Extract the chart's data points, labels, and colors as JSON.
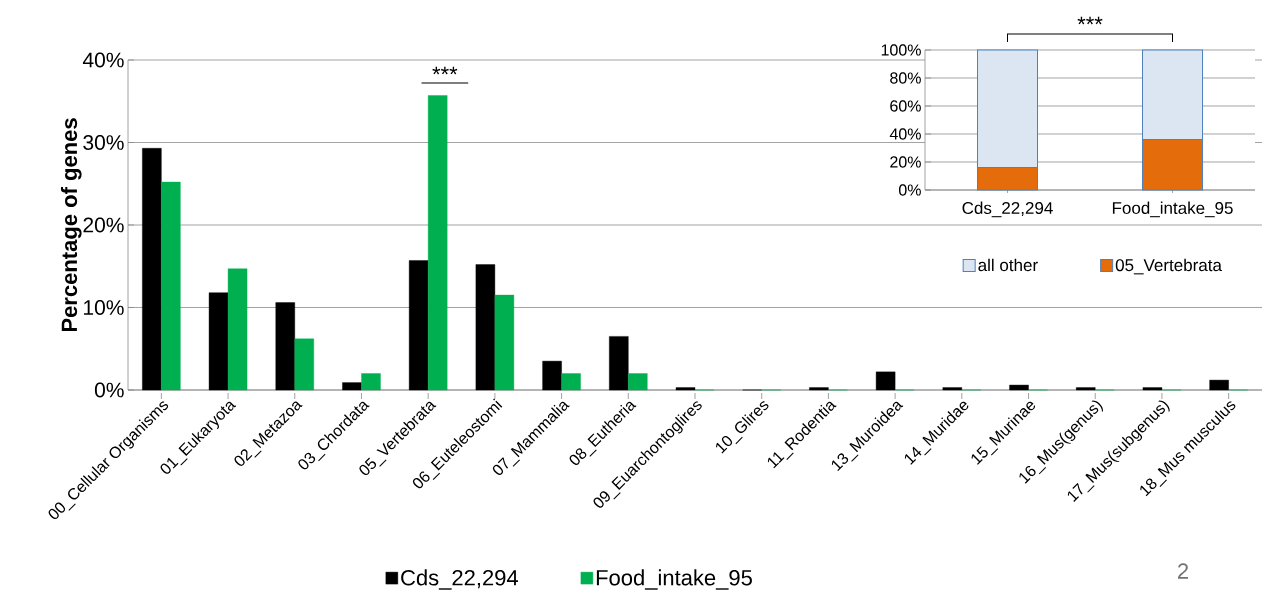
{
  "chart_data": [
    {
      "type": "bar",
      "ylabel": "Percentage of genes",
      "categories": [
        "00_Cellular Organisms",
        "01_Eukaryota",
        "02_Metazoa",
        "03_Chordata",
        "05_Vertebrata",
        "06_Euteleostomi",
        "07_Mammalia",
        "08_Eutheria",
        "09_Euarchontoglires",
        "10_Glires",
        "11_Rodentia",
        "13_Muroidea",
        "14_Muridae",
        "15_Murinae",
        "16_Mus(genus)",
        "17_Mus(subgenus)",
        "18_Mus musculus"
      ],
      "series": [
        {
          "name": "Cds_22,294",
          "color": "#000000",
          "values": [
            29.3,
            11.8,
            10.6,
            0.9,
            15.7,
            15.2,
            3.5,
            6.5,
            0.3,
            0,
            0.3,
            2.2,
            0.3,
            0.6,
            0.3,
            0.3,
            1.2
          ]
        },
        {
          "name": "Food_intake_95",
          "color": "#00b050",
          "values": [
            25.2,
            14.7,
            6.2,
            2.0,
            35.7,
            11.5,
            2.0,
            2.0,
            0,
            0,
            0,
            0,
            0,
            0,
            0,
            0,
            0
          ]
        }
      ],
      "ylim": [
        0,
        40
      ],
      "yticks": [
        {
          "value": 0,
          "label": "0%"
        },
        {
          "value": 10,
          "label": "10%"
        },
        {
          "value": 20,
          "label": "20%"
        },
        {
          "value": 30,
          "label": "30%"
        },
        {
          "value": 40,
          "label": "40%"
        }
      ],
      "grid": "y",
      "legend": "bottom",
      "annotations": [
        "***",
        "2"
      ]
    },
    {
      "type": "bar",
      "stacked": true,
      "categories": [
        "Cds_22,294",
        "Food_intake_95"
      ],
      "series": [
        {
          "name": "05_Vertebrata",
          "color": "#e46c0a",
          "values": [
            16,
            36
          ]
        },
        {
          "name": "all other",
          "color": "#dce6f2",
          "values": [
            84,
            64
          ]
        }
      ],
      "ylim": [
        0,
        100
      ],
      "yticks": [
        {
          "value": 0,
          "label": "0%"
        },
        {
          "value": 20,
          "label": "20%"
        },
        {
          "value": 40,
          "label": "40%"
        },
        {
          "value": 60,
          "label": "60%"
        },
        {
          "value": 80,
          "label": "80%"
        },
        {
          "value": 100,
          "label": "100%"
        }
      ],
      "grid": "y",
      "legend": "bottom",
      "annotations": [
        "***"
      ]
    }
  ]
}
